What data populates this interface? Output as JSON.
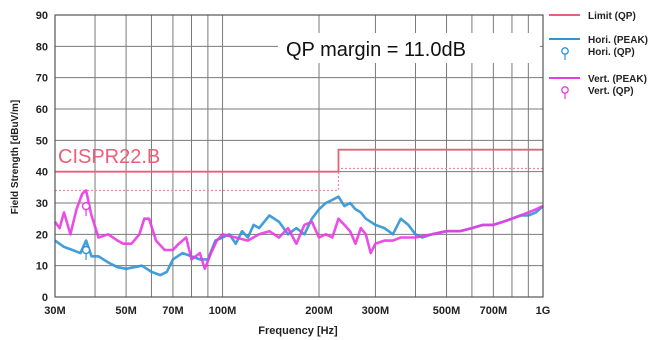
{
  "chart_data": {
    "type": "line",
    "xlabel": "Frequency [Hz]",
    "ylabel": "Field Strength [dBuV/m]",
    "x_scale": "log",
    "xlim": [
      30,
      1000
    ],
    "ylim": [
      0,
      90
    ],
    "grid": true,
    "legend_position": "right",
    "y_ticks": [
      "0",
      "10",
      "20",
      "30",
      "40",
      "50",
      "60",
      "70",
      "80",
      "90"
    ],
    "x_ticks": [
      {
        "value": 30,
        "label": "30M"
      },
      {
        "value": 50,
        "label": "50M"
      },
      {
        "value": 70,
        "label": "70M"
      },
      {
        "value": 100,
        "label": "100M"
      },
      {
        "value": 200,
        "label": "200M"
      },
      {
        "value": 300,
        "label": "300M"
      },
      {
        "value": 500,
        "label": "500M"
      },
      {
        "value": 700,
        "label": "700M"
      },
      {
        "value": 1000,
        "label": "1G"
      }
    ],
    "limit_label": "CISPR22.B",
    "margin_text": "QP margin = 11.0dB",
    "colors": {
      "limit": "#e8607a",
      "hori": "#2f93d6",
      "vert": "#e83be3",
      "margin_line": "#f08aa0",
      "grid": "#7a7a7a"
    },
    "legend": [
      {
        "label": "Limit (QP)",
        "series": "limit",
        "kind": "line"
      },
      {
        "label": "Hori. (PEAK)",
        "series": "hori",
        "kind": "line"
      },
      {
        "label": "Hori. (QP)",
        "series": "hori",
        "kind": "marker"
      },
      {
        "label": "Vert. (PEAK)",
        "series": "vert",
        "kind": "line"
      },
      {
        "label": "Vert. (QP)",
        "series": "vert",
        "kind": "marker"
      }
    ],
    "series": [
      {
        "name": "Limit (QP)",
        "key": "limit",
        "style": "step",
        "x": [
          30,
          230,
          230,
          1000
        ],
        "y": [
          40,
          40,
          47,
          47
        ]
      },
      {
        "name": "Limit - margin",
        "key": "margin_line",
        "style": "dotted",
        "x": [
          30,
          230,
          230,
          1000
        ],
        "y": [
          34,
          34,
          41,
          41
        ]
      },
      {
        "name": "Hori. (PEAK)",
        "key": "hori",
        "x": [
          30,
          32,
          34,
          36,
          37.5,
          39,
          41,
          44,
          47,
          50,
          53,
          56,
          60,
          64,
          67,
          70,
          75,
          80,
          85,
          90,
          95,
          100,
          105,
          110,
          115,
          120,
          125,
          130,
          140,
          150,
          160,
          170,
          180,
          190,
          200,
          210,
          220,
          230,
          240,
          250,
          260,
          270,
          280,
          290,
          300,
          320,
          340,
          360,
          380,
          400,
          420,
          450,
          500,
          550,
          600,
          650,
          700,
          750,
          800,
          850,
          900,
          950,
          1000
        ],
        "y": [
          18,
          16,
          15,
          14,
          18,
          13,
          13,
          11,
          9.5,
          9,
          9.5,
          10,
          8,
          7,
          8,
          12,
          14,
          13,
          12,
          12,
          18,
          19,
          20,
          17,
          21,
          19,
          23,
          22,
          26,
          24,
          20,
          22,
          20,
          25,
          28,
          30,
          31,
          32,
          29,
          30,
          28,
          27,
          25,
          24,
          23,
          22,
          20,
          25,
          23,
          20,
          19,
          20,
          21,
          21,
          22,
          23,
          23,
          24,
          25,
          26,
          26,
          27,
          29
        ]
      },
      {
        "name": "Vert. (PEAK)",
        "key": "vert",
        "x": [
          30,
          31,
          32,
          33.5,
          35,
          36.5,
          37.5,
          39,
          41,
          44,
          47,
          49,
          52,
          55,
          57,
          59,
          62,
          66,
          70,
          73,
          77,
          80,
          85,
          88,
          92,
          96,
          100,
          110,
          120,
          130,
          140,
          150,
          160,
          170,
          180,
          190,
          200,
          210,
          220,
          230,
          240,
          250,
          260,
          270,
          280,
          290,
          300,
          320,
          340,
          360,
          380,
          400,
          450,
          500,
          550,
          600,
          650,
          700,
          750,
          800,
          850,
          900,
          950,
          1000
        ],
        "y": [
          24,
          22,
          27,
          20,
          28,
          33,
          34,
          26,
          19,
          20,
          18,
          17,
          17,
          20,
          25,
          25,
          18,
          15,
          15,
          17,
          19,
          12,
          14,
          9,
          14,
          18,
          20,
          19,
          18,
          20,
          21,
          19,
          22,
          17,
          23,
          24,
          19,
          20,
          19,
          25,
          23,
          21,
          17,
          22,
          20,
          14,
          17,
          18,
          18,
          19,
          19,
          19,
          20,
          21,
          21,
          22,
          23,
          23,
          24,
          25,
          26,
          27,
          28,
          29
        ]
      }
    ],
    "qp_points": [
      {
        "series": "hori",
        "x": 37.5,
        "y": 15
      },
      {
        "series": "vert",
        "x": 37.5,
        "y": 29
      }
    ]
  }
}
